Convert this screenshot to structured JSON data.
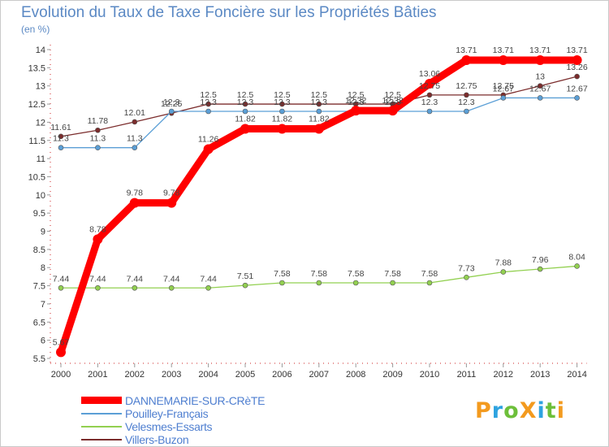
{
  "chart_data": {
    "type": "line",
    "title": "Evolution du Taux de Taxe Foncière sur les Propriétés Bâties",
    "ylabel": "(en %)",
    "xlabel": "",
    "ylim": [
      5.5,
      14
    ],
    "yticks": [
      "5.5",
      "6",
      "6.5",
      "7",
      "7.5",
      "8",
      "8.5",
      "9",
      "9.5",
      "10",
      "10.5",
      "11",
      "11.5",
      "12",
      "12.5",
      "13",
      "13.5",
      "14"
    ],
    "categories": [
      "2000",
      "2001",
      "2002",
      "2003",
      "2004",
      "2005",
      "2006",
      "2007",
      "2008",
      "2009",
      "2010",
      "2011",
      "2012",
      "2013",
      "2014"
    ],
    "series": [
      {
        "name": "DANNEMARIE-SUR-CRèTE",
        "color": "#ff0000",
        "values": [
          5.67,
          8.78,
          9.78,
          9.78,
          11.26,
          11.82,
          11.82,
          11.82,
          12.32,
          12.32,
          13.06,
          13.71,
          13.71,
          13.71,
          13.71
        ],
        "labels": [
          "5.67",
          "8.78",
          "9.78",
          "9.78",
          "11.26",
          "11.82",
          "11.82",
          "11.82",
          "12.32",
          "12.32",
          "13.06",
          "13.71",
          "13.71",
          "13.71",
          "13.71"
        ]
      },
      {
        "name": "Pouilley-Français",
        "color": "#5b9fd6",
        "values": [
          11.3,
          11.3,
          11.3,
          12.3,
          12.3,
          12.3,
          12.3,
          12.3,
          12.3,
          12.3,
          12.3,
          12.3,
          12.67,
          12.67,
          12.67
        ],
        "labels": [
          "11.3",
          "11.3",
          "11.3",
          "12.3",
          "12.3",
          "12.3",
          "12.3",
          "12.3",
          "12.3",
          "12.3",
          "12.3",
          "12.3",
          "12.67",
          "12.67",
          "12.67"
        ]
      },
      {
        "name": "Velesmes-Essarts",
        "color": "#92d050",
        "values": [
          7.44,
          7.44,
          7.44,
          7.44,
          7.44,
          7.51,
          7.58,
          7.58,
          7.58,
          7.58,
          7.58,
          7.73,
          7.88,
          7.96,
          8.04
        ],
        "labels": [
          "7.44",
          "7.44",
          "7.44",
          "7.44",
          "7.44",
          "7.51",
          "7.58",
          "7.58",
          "7.58",
          "7.58",
          "7.58",
          "7.73",
          "7.88",
          "7.96",
          "8.04"
        ]
      },
      {
        "name": "Villers-Buzon",
        "color": "#7b2c2c",
        "values": [
          11.61,
          11.78,
          12.01,
          12.25,
          12.5,
          12.5,
          12.5,
          12.5,
          12.5,
          12.5,
          12.75,
          12.75,
          12.75,
          13,
          13.26
        ],
        "labels": [
          "11.61",
          "11.78",
          "12.01",
          "12.25",
          "12.5",
          "12.5",
          "12.5",
          "12.5",
          "12.5",
          "12.5",
          "12.75",
          "12.75",
          "12.75",
          "13",
          "13.26"
        ]
      }
    ],
    "legend": "bottom-left",
    "grid": false
  },
  "logo": {
    "text": "ProXiti",
    "letters": [
      "P",
      "r",
      "o",
      "X",
      "i",
      "t",
      "i"
    ],
    "colors": [
      "#f39a1e",
      "#2ea3e0",
      "#6dbf3a",
      "#f39a1e",
      "#2ea3e0",
      "#6dbf3a",
      "#f39a1e"
    ]
  }
}
